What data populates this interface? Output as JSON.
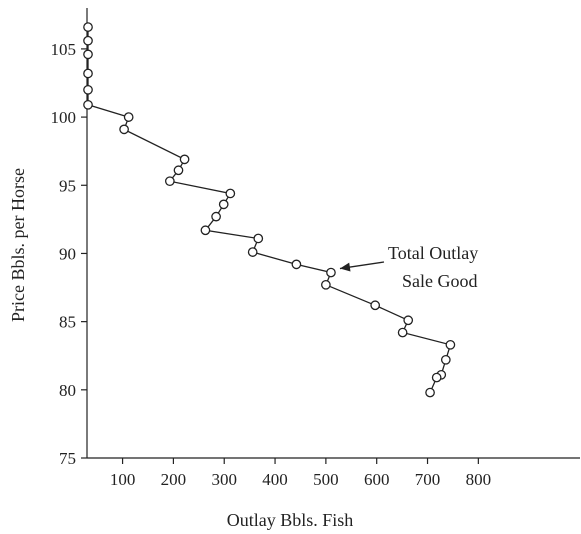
{
  "chart_data": {
    "type": "line",
    "title": "",
    "xlabel": "Outlay Bbls. Fish",
    "ylabel": "Price Bbls. per Horse",
    "xlim": [
      30,
      1000
    ],
    "ylim": [
      75,
      108
    ],
    "xticks": [
      100,
      200,
      300,
      400,
      500,
      600,
      700,
      800
    ],
    "xtick_labels": [
      "100",
      "200",
      "300",
      "400",
      "500",
      "600",
      "700",
      "800"
    ],
    "yticks": [
      75,
      80,
      85,
      90,
      95,
      100,
      105
    ],
    "ytick_labels": [
      "75",
      "80",
      "85",
      "90",
      "95",
      "100",
      "105"
    ],
    "grid": false,
    "annotation": {
      "lines": [
        "Total Outlay",
        "Sale Good"
      ],
      "points_to": {
        "x": 510,
        "y": 88.6
      }
    },
    "series": [
      {
        "points": [
          {
            "x": 32,
            "y": 106.6
          },
          {
            "x": 32,
            "y": 105.6
          },
          {
            "x": 32,
            "y": 104.6
          },
          {
            "x": 32,
            "y": 103.2
          },
          {
            "x": 32,
            "y": 102.0
          },
          {
            "x": 32,
            "y": 100.9
          },
          {
            "x": 112,
            "y": 100.0
          },
          {
            "x": 103,
            "y": 99.1
          },
          {
            "x": 222,
            "y": 96.9
          },
          {
            "x": 210,
            "y": 96.1
          },
          {
            "x": 193,
            "y": 95.3
          },
          {
            "x": 312,
            "y": 94.4
          },
          {
            "x": 299,
            "y": 93.6
          },
          {
            "x": 284,
            "y": 92.7
          },
          {
            "x": 263,
            "y": 91.7
          },
          {
            "x": 367,
            "y": 91.1
          },
          {
            "x": 356,
            "y": 90.1
          },
          {
            "x": 442,
            "y": 89.2
          },
          {
            "x": 510,
            "y": 88.6
          },
          {
            "x": 500,
            "y": 87.7
          },
          {
            "x": 597,
            "y": 86.2
          },
          {
            "x": 662,
            "y": 85.1
          },
          {
            "x": 651,
            "y": 84.2
          },
          {
            "x": 745,
            "y": 83.3
          },
          {
            "x": 736,
            "y": 82.2
          },
          {
            "x": 727,
            "y": 81.1
          },
          {
            "x": 718,
            "y": 80.9
          },
          {
            "x": 705,
            "y": 79.8
          }
        ]
      }
    ]
  }
}
